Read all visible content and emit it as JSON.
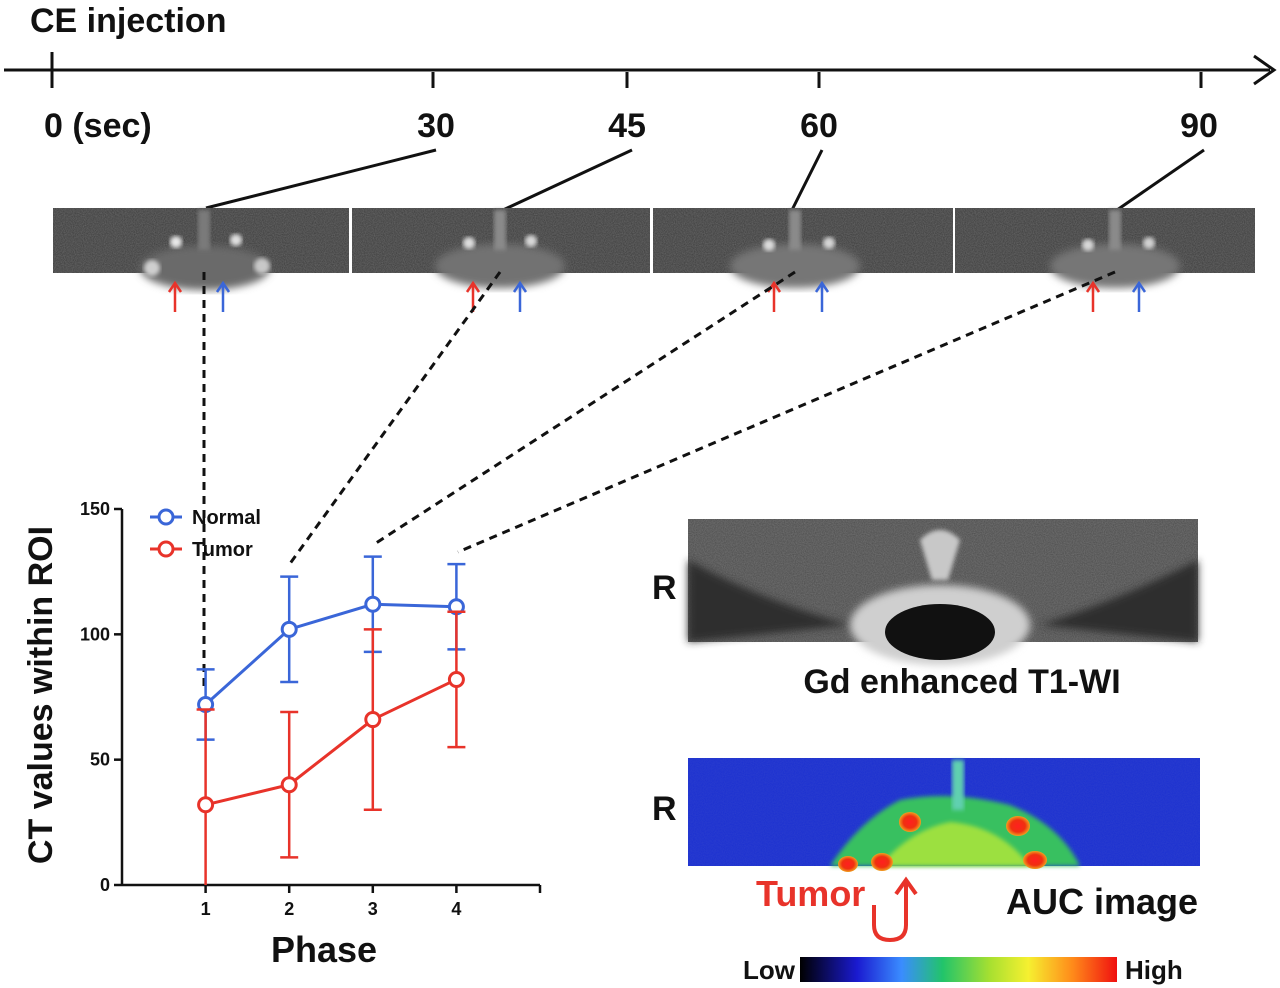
{
  "timeline": {
    "title": "CE injection",
    "ticks": [
      "0 (sec)",
      "30",
      "45",
      "60",
      "90"
    ]
  },
  "scan_strip": {
    "panel_count": 4,
    "arrow_colors": {
      "tumor": "#e8332a",
      "normal": "#3a66d8"
    }
  },
  "chart_data": {
    "type": "line",
    "ylabel": "CT values within ROI",
    "xlabel": "Phase",
    "x": [
      1,
      2,
      3,
      4
    ],
    "xlim": [
      0,
      5
    ],
    "ylim": [
      0,
      150
    ],
    "yticks": [
      "0",
      "50",
      "100",
      "150"
    ],
    "xticks": [
      "1",
      "2",
      "3",
      "4"
    ],
    "legend_position": "top-left",
    "series": [
      {
        "name": "Normal",
        "color": "#3a66d8",
        "values": [
          72,
          102,
          112,
          111
        ],
        "error": [
          14,
          21,
          19,
          17
        ]
      },
      {
        "name": "Tumor",
        "color": "#e8332a",
        "values": [
          32,
          40,
          66,
          82
        ],
        "error": [
          38,
          29,
          36,
          27
        ]
      }
    ]
  },
  "mri": {
    "side_label": "R",
    "caption": "Gd enhanced T1-WI"
  },
  "auc": {
    "side_label": "R",
    "caption": "AUC image",
    "tumor_label": "Tumor",
    "colorbar_low": "Low",
    "colorbar_high": "High"
  }
}
